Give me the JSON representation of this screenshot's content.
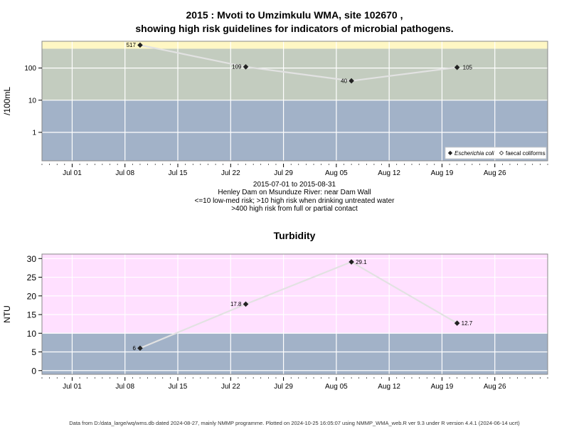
{
  "title_line1": "2015 : Mvoti to Umzimkulu WMA, site 102670 ,",
  "title_line2": "showing high risk guidelines for indicators of microbial pathogens.",
  "info_lines": [
    "2015-07-01 to 2015-08-31",
    "Henley Dam on Msunduze River: near Dam Wall",
    "<=10 low-med risk; >10 high risk when drinking untreated water",
    ">400 high risk from full or partial contact"
  ],
  "footer": "Data from D:/data_large/wq/wms.db dated 2024-08-27, mainly NMMP programme. Plotted on 2024-10-25 16:05:07 using NMMP_WMA_web.R ver 9.3 under R version 4.4.1 (2024-06-14 ucrt)",
  "colors": {
    "band_low": "#a2b2c8",
    "band_high": "#c3ccbf",
    "band_top": "#fff7c4",
    "turbidity_high": "#ffe0ff",
    "line": "#e2e2e2",
    "marker": "#222222"
  },
  "chart_data": [
    {
      "type": "line",
      "title": "",
      "ylabel": "/100mL",
      "xlabel": "",
      "y_scale": "log",
      "ylim": [
        0.13,
        680
      ],
      "xlim": [
        "2015-06-27",
        "2015-09-02"
      ],
      "x_ticks": [
        "Jul 01",
        "Jul 08",
        "Jul 15",
        "Jul 22",
        "Jul 29",
        "Aug 05",
        "Aug 12",
        "Aug 19",
        "Aug 26"
      ],
      "x_tick_dates": [
        "2015-07-01",
        "2015-07-08",
        "2015-07-15",
        "2015-07-22",
        "2015-07-29",
        "2015-08-05",
        "2015-08-12",
        "2015-08-19",
        "2015-08-26"
      ],
      "y_ticks": [
        "1",
        "10",
        "100"
      ],
      "y_tick_values": [
        1,
        10,
        100
      ],
      "bands": [
        {
          "from": 0.13,
          "to": 10,
          "color": "#a2b2c8"
        },
        {
          "from": 10,
          "to": 400,
          "color": "#c3ccbf"
        },
        {
          "from": 400,
          "to": 680,
          "color": "#fff7c4"
        }
      ],
      "grid": true,
      "legend_position": "bottom-right",
      "legend": [
        {
          "label": "Escherichia coli",
          "marker": "filled-diamond",
          "italic": true
        },
        {
          "label": "faecal coliforms",
          "marker": "open-diamond",
          "italic": false
        }
      ],
      "series": [
        {
          "name": "Escherichia coli",
          "x": [
            "2015-07-10",
            "2015-07-24",
            "2015-08-07",
            "2015-08-21"
          ],
          "values": [
            517,
            109,
            40,
            105
          ],
          "labels": [
            "517",
            "109",
            "40",
            "105"
          ]
        }
      ]
    },
    {
      "type": "line",
      "title": "Turbidity",
      "ylabel": "NTU",
      "xlabel": "",
      "y_scale": "linear",
      "ylim": [
        -1,
        31.2
      ],
      "xlim": [
        "2015-06-27",
        "2015-09-02"
      ],
      "x_ticks": [
        "Jul 01",
        "Jul 08",
        "Jul 15",
        "Jul 22",
        "Jul 29",
        "Aug 05",
        "Aug 12",
        "Aug 19",
        "Aug 26"
      ],
      "x_tick_dates": [
        "2015-07-01",
        "2015-07-08",
        "2015-07-15",
        "2015-07-22",
        "2015-07-29",
        "2015-08-05",
        "2015-08-12",
        "2015-08-19",
        "2015-08-26"
      ],
      "y_ticks": [
        "0",
        "5",
        "10",
        "15",
        "20",
        "25",
        "30"
      ],
      "y_tick_values": [
        0,
        5,
        10,
        15,
        20,
        25,
        30
      ],
      "bands": [
        {
          "from": -1,
          "to": 10,
          "color": "#a2b2c8"
        },
        {
          "from": 10,
          "to": 31.2,
          "color": "#ffe0ff"
        }
      ],
      "grid": true,
      "series": [
        {
          "name": "Turbidity",
          "x": [
            "2015-07-10",
            "2015-07-24",
            "2015-08-07",
            "2015-08-21"
          ],
          "values": [
            6,
            17.8,
            29.1,
            12.7
          ],
          "labels": [
            "6",
            "17.8",
            "29.1",
            "12.7"
          ]
        }
      ]
    }
  ]
}
